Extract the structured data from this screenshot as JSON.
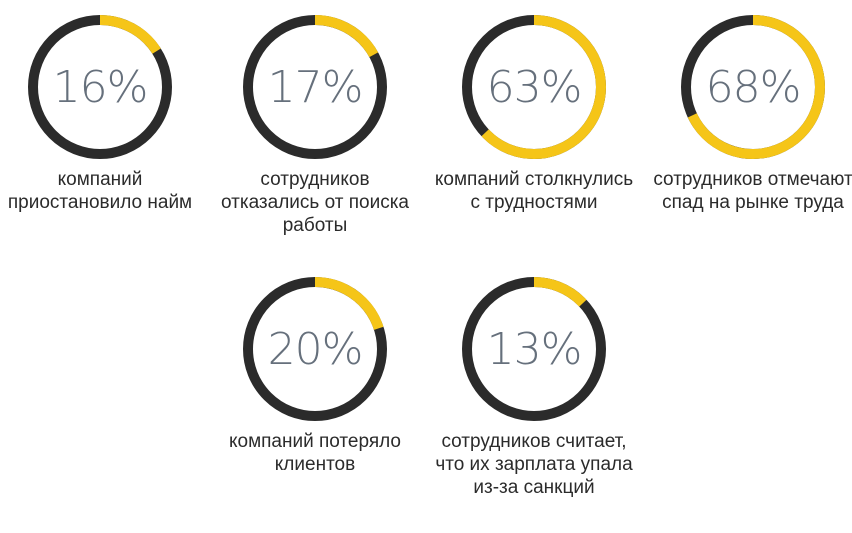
{
  "colors": {
    "track": "#2b2b2b",
    "progress": "#f5c518",
    "percent_text": "#66707c",
    "caption_text": "#2b2b2b"
  },
  "stats": [
    {
      "percent_label": "16%",
      "value": 0.16,
      "caption": "компаний приостановило найм"
    },
    {
      "percent_label": "17%",
      "value": 0.17,
      "caption": "сотрудников отказались от поиска работы"
    },
    {
      "percent_label": "63%",
      "value": 0.63,
      "caption": "компаний столкнулись с трудностями"
    },
    {
      "percent_label": "68%",
      "value": 0.68,
      "caption": "сотрудников отмечают спад на рынке труда"
    },
    {
      "percent_label": "20%",
      "value": 0.2,
      "caption": "компаний потеряло клиентов"
    },
    {
      "percent_label": "13%",
      "value": 0.13,
      "caption": "сотрудников считает, что их зарплата упала из-за санкций"
    }
  ]
}
